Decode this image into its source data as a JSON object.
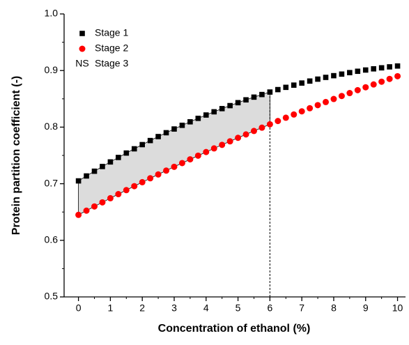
{
  "chart_data": {
    "type": "scatter",
    "xlabel": "Concentration of ethanol (%)",
    "ylabel": "Protein partition coefficient (-)",
    "x": [
      0,
      0.25,
      0.5,
      0.75,
      1,
      1.25,
      1.5,
      1.75,
      2,
      2.25,
      2.5,
      2.75,
      3,
      3.25,
      3.5,
      3.75,
      4,
      4.25,
      4.5,
      4.75,
      5,
      5.25,
      5.5,
      5.75,
      6,
      6.25,
      6.5,
      6.75,
      7,
      7.25,
      7.5,
      7.75,
      8,
      8.25,
      8.5,
      8.75,
      9,
      9.25,
      9.5,
      9.75,
      10
    ],
    "series": [
      {
        "name": "Stage 1",
        "color": "#000000",
        "marker": "square",
        "values": [
          0.705,
          0.7137,
          0.7221,
          0.7304,
          0.7385,
          0.7464,
          0.7542,
          0.7617,
          0.7691,
          0.7763,
          0.7833,
          0.7901,
          0.7967,
          0.8032,
          0.8094,
          0.8155,
          0.8214,
          0.8271,
          0.8327,
          0.838,
          0.8432,
          0.8482,
          0.853,
          0.8576,
          0.862,
          0.8663,
          0.8703,
          0.8742,
          0.8779,
          0.8814,
          0.8848,
          0.8879,
          0.8909,
          0.8937,
          0.8963,
          0.8987,
          0.9009,
          0.903,
          0.9048,
          0.9065,
          0.908
        ]
      },
      {
        "name": "Stage 2",
        "color": "#ff0000",
        "marker": "circle",
        "values": [
          0.645,
          0.6524,
          0.6598,
          0.6671,
          0.6744,
          0.6816,
          0.6887,
          0.6957,
          0.7027,
          0.7096,
          0.7164,
          0.7232,
          0.7299,
          0.7365,
          0.7431,
          0.7496,
          0.756,
          0.7624,
          0.7687,
          0.7749,
          0.7811,
          0.7871,
          0.7932,
          0.7991,
          0.805,
          0.8108,
          0.8166,
          0.8223,
          0.8279,
          0.8334,
          0.8389,
          0.8443,
          0.8497,
          0.855,
          0.8602,
          0.8653,
          0.8704,
          0.8754,
          0.8803,
          0.8852,
          0.89
        ]
      }
    ],
    "shaded_region": {
      "label": "NS",
      "name": "Stage 3",
      "x_end": 6,
      "color": "#dcdcdc"
    },
    "xlim": [
      -0.45,
      10.25
    ],
    "xticks": [
      0,
      1,
      2,
      3,
      4,
      5,
      6,
      7,
      8,
      9,
      10
    ],
    "ylim": [
      0.5,
      1.0
    ],
    "yticks": [
      0.5,
      0.6,
      0.7,
      0.8,
      0.9,
      {
        "value": 1.0,
        "label": "1.0"
      }
    ],
    "legend": "upper left"
  }
}
